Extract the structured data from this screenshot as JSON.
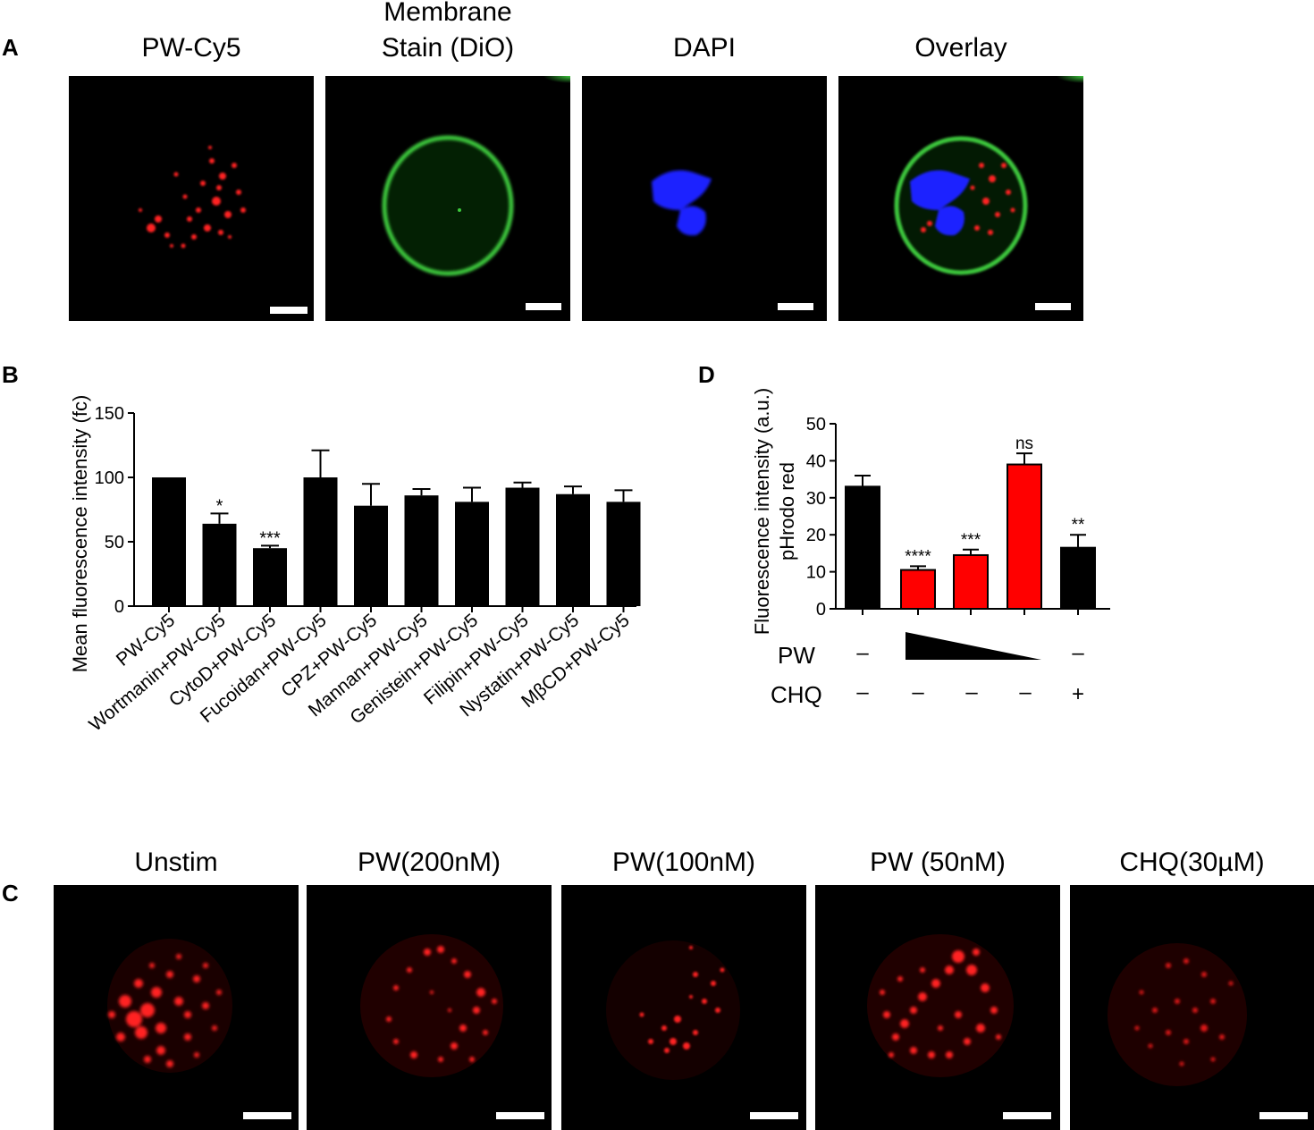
{
  "panels": {
    "A": {
      "letter": "A",
      "titles": [
        "PW-Cy5",
        "Membrane",
        "Stain (DiO)",
        "DAPI",
        "Overlay"
      ]
    },
    "B": {
      "letter": "B"
    },
    "C": {
      "letter": "C",
      "titles": [
        "Unstim",
        "PW(200nM)",
        "PW(100nM)",
        "PW (50nM)",
        "CHQ(30µM)"
      ]
    },
    "D": {
      "letter": "D",
      "row_labels": [
        "PW",
        "CHQ"
      ],
      "pw_signs": [
        "–",
        "–"
      ],
      "chq_signs": [
        "–",
        "–",
        "–",
        "–",
        "+"
      ]
    }
  },
  "colors": {
    "cy5": "#ff2020",
    "dio": "#3cc83c",
    "dapi": "#1a22ff",
    "bar_black": "#000000",
    "bar_red": "#ff0000"
  },
  "chart_data": [
    {
      "panel": "B",
      "type": "bar",
      "ylabel": "Mean fluorescence intensity (fc)",
      "ylim": [
        0,
        150
      ],
      "yticks": [
        0,
        50,
        100,
        150
      ],
      "categories": [
        "PW-Cy5",
        "Wortmanin+PW-Cy5",
        "CytoD+PW-Cy5",
        "Fucoidan+PW-Cy5",
        "CPZ+PW-Cy5",
        "Mannan+PW-Cy5",
        "Genistein+PW-Cy5",
        "Filipin+PW-Cy5",
        "Nystatin+PW-Cy5",
        "MβCD+PW-Cy5"
      ],
      "values": [
        100,
        64,
        45,
        100,
        78,
        86,
        81,
        92,
        87,
        81
      ],
      "errors": [
        0,
        8,
        2,
        21,
        17,
        5,
        11,
        4,
        6,
        9
      ],
      "annotations": [
        "",
        "*",
        "***",
        "",
        "",
        "",
        "",
        "",
        "",
        ""
      ],
      "bar_color": "#000000"
    },
    {
      "panel": "D",
      "type": "bar",
      "ylabel_lines": [
        "Fluorescence intensity (a.u.)",
        "pHrodo red"
      ],
      "ylim": [
        0,
        50
      ],
      "yticks": [
        0,
        10,
        20,
        30,
        40,
        50
      ],
      "values": [
        33,
        10.5,
        14.5,
        39,
        16.5
      ],
      "errors": [
        3,
        1,
        1.5,
        3,
        3.5
      ],
      "colors": [
        "#000000",
        "#ff0000",
        "#ff0000",
        "#ff0000",
        "#000000"
      ],
      "annotations": [
        "",
        "****",
        "***",
        "ns",
        "**"
      ]
    }
  ]
}
